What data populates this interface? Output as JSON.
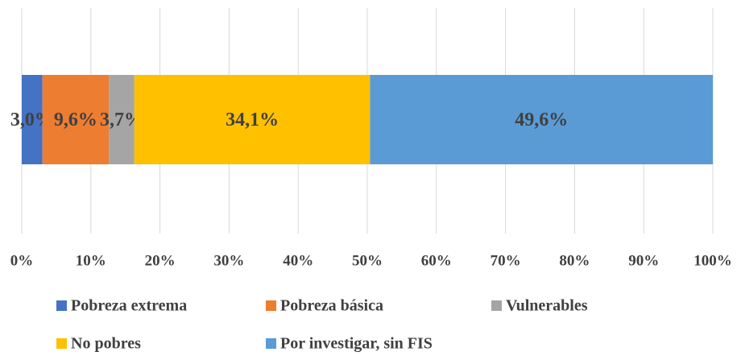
{
  "chart_data": {
    "type": "stacked-bar-horizontal",
    "series": [
      {
        "name": "Pobreza extrema",
        "color": "#4472c4",
        "values": [
          3.0
        ],
        "value_labels": [
          "3,0%"
        ]
      },
      {
        "name": "Pobreza básica",
        "color": "#ed7d31",
        "values": [
          9.6
        ],
        "value_labels": [
          "9,6%"
        ]
      },
      {
        "name": "Vulnerables",
        "color": "#a5a5a5",
        "values": [
          3.7
        ],
        "value_labels": [
          "3,7%"
        ]
      },
      {
        "name": "No pobres",
        "color": "#ffc000",
        "values": [
          34.1
        ],
        "value_labels": [
          "34,1%"
        ]
      },
      {
        "name": "Por investigar, sin FIS",
        "color": "#5b9bd5",
        "values": [
          49.6
        ],
        "value_labels": [
          "49,6%"
        ]
      }
    ],
    "xlim": [
      0,
      100
    ],
    "xticks": [
      {
        "value": 0,
        "label": "0%"
      },
      {
        "value": 10,
        "label": "10%"
      },
      {
        "value": 20,
        "label": "20%"
      },
      {
        "value": 30,
        "label": "30%"
      },
      {
        "value": 40,
        "label": "40%"
      },
      {
        "value": 50,
        "label": "50%"
      },
      {
        "value": 60,
        "label": "60%"
      },
      {
        "value": 70,
        "label": "70%"
      },
      {
        "value": 80,
        "label": "80%"
      },
      {
        "value": 90,
        "label": "90%"
      },
      {
        "value": 100,
        "label": "100%"
      }
    ],
    "grid": true,
    "legend": "bottom"
  }
}
